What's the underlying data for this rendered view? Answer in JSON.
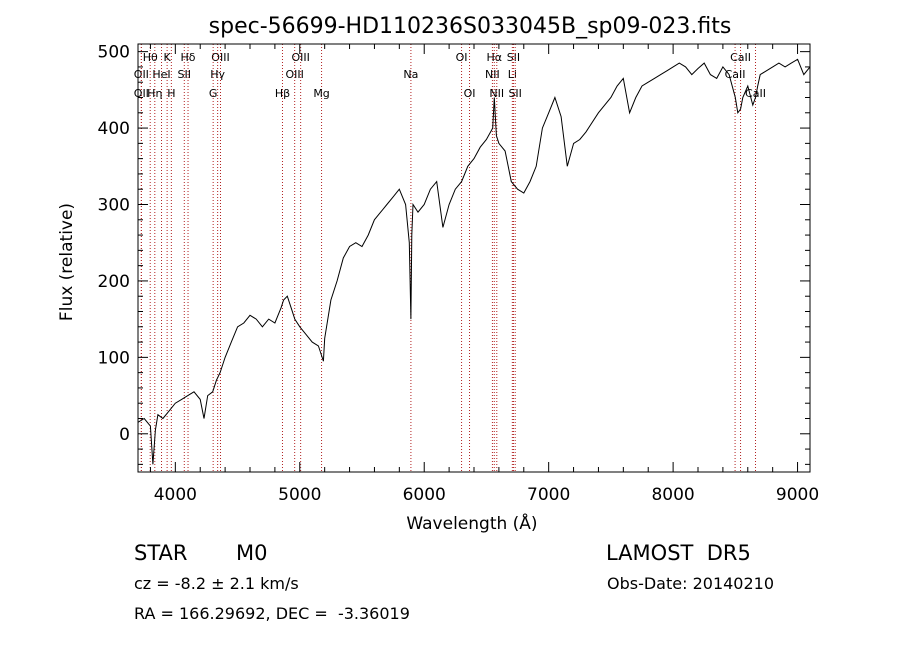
{
  "chart_data": {
    "type": "line",
    "title": "spec-56699-HD110236S033045B_sp09-023.fits",
    "xlabel": "Wavelength (Å)",
    "ylabel": "Flux (relative)",
    "xlim": [
      3700,
      9100
    ],
    "ylim": [
      -50,
      510
    ],
    "x_ticks": [
      4000,
      5000,
      6000,
      7000,
      8000,
      9000
    ],
    "y_ticks": [
      0,
      100,
      200,
      300,
      400,
      500
    ],
    "grid": false,
    "series_color": "#000000",
    "line_color": "#b22222",
    "spectrum": {
      "x": [
        3700,
        3750,
        3800,
        3820,
        3840,
        3860,
        3900,
        3950,
        4000,
        4050,
        4100,
        4150,
        4200,
        4230,
        4260,
        4300,
        4330,
        4360,
        4400,
        4450,
        4500,
        4550,
        4600,
        4650,
        4700,
        4750,
        4800,
        4850,
        4870,
        4900,
        4930,
        4960,
        5000,
        5050,
        5100,
        5150,
        5170,
        5190,
        5200,
        5250,
        5300,
        5350,
        5400,
        5450,
        5500,
        5550,
        5600,
        5650,
        5700,
        5750,
        5800,
        5850,
        5880,
        5893,
        5900,
        5910,
        5950,
        6000,
        6050,
        6100,
        6150,
        6200,
        6250,
        6300,
        6350,
        6400,
        6450,
        6500,
        6550,
        6563,
        6580,
        6600,
        6650,
        6700,
        6750,
        6800,
        6850,
        6900,
        6950,
        7000,
        7050,
        7100,
        7150,
        7200,
        7250,
        7300,
        7400,
        7500,
        7550,
        7600,
        7650,
        7700,
        7750,
        7800,
        7850,
        7900,
        7950,
        8000,
        8050,
        8100,
        8150,
        8200,
        8250,
        8300,
        8350,
        8400,
        8450,
        8500,
        8520,
        8542,
        8560,
        8600,
        8640,
        8662,
        8680,
        8700,
        8750,
        8800,
        8850,
        8900,
        8950,
        9000,
        9050,
        9100
      ],
      "y": [
        15,
        20,
        10,
        -40,
        5,
        25,
        20,
        30,
        40,
        45,
        50,
        55,
        45,
        20,
        50,
        55,
        70,
        80,
        100,
        120,
        140,
        145,
        155,
        150,
        140,
        150,
        145,
        165,
        175,
        180,
        165,
        150,
        140,
        130,
        120,
        115,
        105,
        95,
        125,
        175,
        200,
        230,
        245,
        250,
        245,
        260,
        280,
        290,
        300,
        310,
        320,
        300,
        250,
        150,
        260,
        300,
        290,
        300,
        320,
        330,
        270,
        300,
        320,
        330,
        350,
        360,
        375,
        385,
        400,
        440,
        390,
        380,
        370,
        330,
        320,
        315,
        330,
        350,
        400,
        420,
        440,
        415,
        350,
        380,
        385,
        395,
        420,
        440,
        455,
        465,
        420,
        440,
        455,
        460,
        465,
        470,
        475,
        480,
        485,
        480,
        470,
        478,
        485,
        470,
        465,
        480,
        470,
        440,
        420,
        425,
        440,
        455,
        430,
        440,
        455,
        470,
        475,
        480,
        485,
        480,
        485,
        490,
        470,
        480
      ]
    },
    "lines": [
      {
        "label": "Hθ",
        "x": 3798,
        "row": 1
      },
      {
        "label": "K",
        "x": 3934,
        "row": 1
      },
      {
        "label": "Hδ",
        "x": 4102,
        "row": 1
      },
      {
        "label": "OIII",
        "x": 4363,
        "row": 1
      },
      {
        "label": "OIII",
        "x": 5007,
        "row": 1
      },
      {
        "label": "OI",
        "x": 6300,
        "row": 1
      },
      {
        "label": "Hα",
        "x": 6563,
        "row": 1
      },
      {
        "label": "SII",
        "x": 6717,
        "row": 1
      },
      {
        "label": "CaII",
        "x": 8542,
        "row": 1
      },
      {
        "label": "OII",
        "x": 3727,
        "row": 2
      },
      {
        "label": "HeI",
        "x": 3889,
        "row": 2
      },
      {
        "label": "SII",
        "x": 4072,
        "row": 2
      },
      {
        "label": "Hγ",
        "x": 4340,
        "row": 2
      },
      {
        "label": "OIII",
        "x": 4959,
        "row": 2
      },
      {
        "label": "Na",
        "x": 5893,
        "row": 2
      },
      {
        "label": "NII",
        "x": 6548,
        "row": 2
      },
      {
        "label": "Li",
        "x": 6708,
        "row": 2
      },
      {
        "label": "CaII",
        "x": 8498,
        "row": 2
      },
      {
        "label": "OII",
        "x": 3727,
        "row": 3
      },
      {
        "label": "Hη",
        "x": 3835,
        "row": 3
      },
      {
        "label": "H",
        "x": 3968,
        "row": 3
      },
      {
        "label": "G",
        "x": 4304,
        "row": 3
      },
      {
        "label": "Hβ",
        "x": 4861,
        "row": 3
      },
      {
        "label": "Mg",
        "x": 5175,
        "row": 3
      },
      {
        "label": "OI",
        "x": 6364,
        "row": 3
      },
      {
        "label": "NII",
        "x": 6583,
        "row": 3
      },
      {
        "label": "SII",
        "x": 6731,
        "row": 3
      },
      {
        "label": "CaII",
        "x": 8662,
        "row": 3
      }
    ]
  },
  "info": {
    "class": "STAR",
    "subclass": "M0",
    "survey": "LAMOST  DR5",
    "cz": "cz = -8.2 ± 2.1 km/s",
    "obs_date": "Obs-Date: 20140210",
    "coords": "RA = 166.29692, DEC =  -3.36019"
  }
}
